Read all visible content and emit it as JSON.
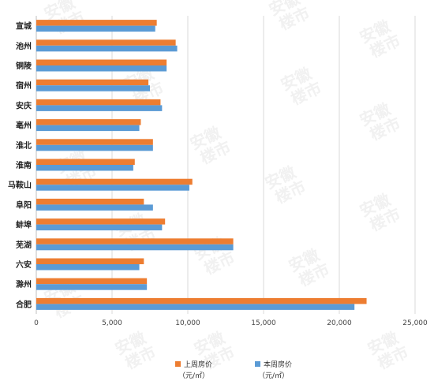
{
  "chart_data": {
    "type": "bar",
    "orientation": "horizontal",
    "categories": [
      "宣城",
      "池州",
      "铜陵",
      "宿州",
      "安庆",
      "亳州",
      "淮北",
      "淮南",
      "马鞍山",
      "阜阳",
      "蚌埠",
      "芜湖",
      "六安",
      "滁州",
      "合肥"
    ],
    "series": [
      {
        "name": "上周房价",
        "unit": "（元/㎡）",
        "color": "#ED7D31",
        "values": [
          7950,
          9200,
          8600,
          7400,
          8200,
          6900,
          7700,
          6500,
          10300,
          7100,
          8500,
          13000,
          7100,
          7300,
          21800
        ]
      },
      {
        "name": "本周房价",
        "unit": "（元/㎡）",
        "color": "#5B9BD5",
        "values": [
          7850,
          9300,
          8600,
          7500,
          8300,
          6800,
          7700,
          6400,
          10100,
          7700,
          8300,
          13000,
          6800,
          7300,
          21000
        ]
      }
    ],
    "x_ticks": [
      "0",
      "5,000",
      "10,000",
      "15,000",
      "20,000",
      "25,000"
    ],
    "xlim": [
      0,
      25000
    ],
    "grid": true,
    "legend_position": "bottom"
  },
  "watermark": {
    "text_top": "安徽",
    "text_bottom": "楼市"
  }
}
